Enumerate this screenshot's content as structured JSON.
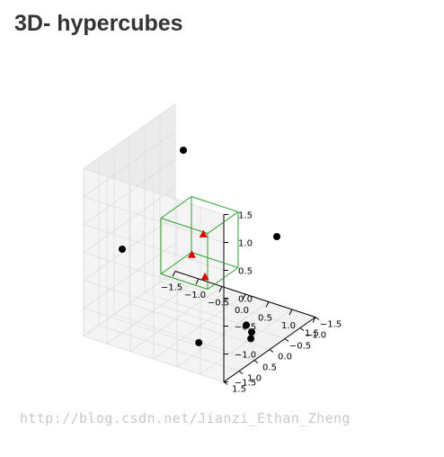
{
  "page": {
    "title": "3D- hypercubes"
  },
  "watermark": "http://blog.csdn.net/Jianzi_Ethan_Zheng",
  "colors": {
    "cube_edges": "#2ca02c",
    "points_black": "#000000",
    "points_red": "#e00000",
    "pane_fill": "#f2f2f2",
    "grid": "#dddddd"
  },
  "chart_data": {
    "type": "scatter3d",
    "title": "",
    "grid": true,
    "xlim": [
      -1.5,
      1.5
    ],
    "ylim": [
      -1.5,
      1.5
    ],
    "zlim": [
      -1.5,
      1.5
    ],
    "x_ticks": [
      "−1.5",
      "−1.0",
      "−0.5",
      "0.0",
      "0.5",
      "1.0",
      "1.5"
    ],
    "y_ticks": [
      "−1.5",
      "−1.0",
      "−0.5",
      "0.0",
      "0.5",
      "1.0",
      "1.5"
    ],
    "z_ticks": [
      "−1.5",
      "−1.0",
      "−0.5",
      "0.0",
      "0.5",
      "1.0",
      "1.5"
    ],
    "cube": {
      "min": [
        -0.5,
        -0.5,
        -0.5
      ],
      "max": [
        0.5,
        0.5,
        0.5
      ]
    },
    "series": [
      {
        "marker": "circle",
        "color": "#000000",
        "points": [
          [
            -1.0,
            -1.0,
            1.0
          ],
          [
            -1.0,
            1.0,
            0.0
          ],
          [
            1.0,
            -1.0,
            0.0
          ],
          [
            0.9,
            1.4,
            -1.0
          ],
          [
            1.0,
            0.0,
            -1.2
          ],
          [
            1.05,
            -0.1,
            -1.35
          ],
          [
            1.0,
            -0.15,
            -1.5
          ]
        ]
      },
      {
        "marker": "triangle",
        "color": "#e00000",
        "points": [
          [
            0.05,
            -0.05,
            0.15
          ],
          [
            -0.1,
            0.1,
            -0.2
          ],
          [
            0.15,
            0.05,
            -0.55
          ]
        ]
      }
    ]
  }
}
